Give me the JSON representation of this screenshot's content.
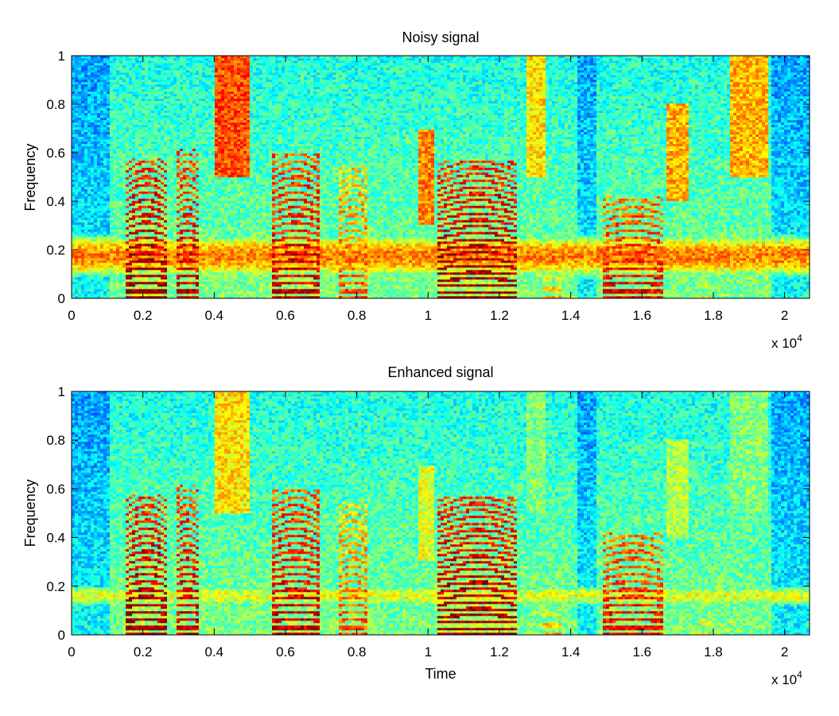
{
  "chart_data": [
    {
      "type": "heatmap",
      "title": "Noisy signal",
      "xlabel": "",
      "ylabel": "Frequency",
      "xlim": [
        0,
        20700
      ],
      "ylim": [
        0,
        1
      ],
      "x_ticks": [
        "0",
        "0.2",
        "0.4",
        "0.6",
        "0.8",
        "1",
        "1.2",
        "1.4",
        "1.6",
        "1.8",
        "2"
      ],
      "y_ticks": [
        "0",
        "0.2",
        "0.4",
        "0.6",
        "0.8",
        "1"
      ],
      "x_exponent_base": "x 10",
      "x_exponent_power": "4",
      "colormap": "jet",
      "noise_band": {
        "freq_range": [
          0.1,
          0.25
        ],
        "level": 0.75
      },
      "speech_segments": [
        {
          "t": [
            1550,
            2650
          ],
          "f0": 0.029,
          "fmax": 0.58,
          "level": 1.0
        },
        {
          "t": [
            2900,
            3600
          ],
          "f0": 0.029,
          "fmax": 0.62,
          "level": 0.95
        },
        {
          "t": [
            5600,
            7000
          ],
          "f0": 0.029,
          "fmax": 0.6,
          "level": 0.95
        },
        {
          "t": [
            7500,
            8300
          ],
          "f0": 0.029,
          "fmax": 0.55,
          "level": 0.8
        },
        {
          "t": [
            10300,
            12500
          ],
          "f0": 0.025,
          "fmax": 0.57,
          "level": 1.0
        },
        {
          "t": [
            13200,
            13700
          ],
          "f0": 0.04,
          "fmax": 0.12,
          "level": 0.7
        },
        {
          "t": [
            14900,
            16600
          ],
          "f0": 0.029,
          "fmax": 0.42,
          "level": 0.9
        },
        {
          "t": [
            17600,
            17900
          ],
          "f0": 0.05,
          "fmax": 0.1,
          "level": 0.65
        }
      ],
      "fricatives": [
        {
          "t": [
            4000,
            5000
          ],
          "freq_range": [
            0.5,
            1.0
          ],
          "level": 0.8
        },
        {
          "t": [
            9700,
            10200
          ],
          "freq_range": [
            0.3,
            0.7
          ],
          "level": 0.75
        },
        {
          "t": [
            12800,
            13300
          ],
          "freq_range": [
            0.5,
            1.0
          ],
          "level": 0.65
        },
        {
          "t": [
            16700,
            17300
          ],
          "freq_range": [
            0.4,
            0.8
          ],
          "level": 0.7
        },
        {
          "t": [
            18500,
            19500
          ],
          "freq_range": [
            0.5,
            1.0
          ],
          "level": 0.7
        }
      ],
      "silence_regions": [
        [
          0,
          1100
        ],
        [
          14200,
          14700
        ],
        [
          19600,
          20700
        ]
      ]
    },
    {
      "type": "heatmap",
      "title": "Enhanced signal",
      "xlabel": "Time",
      "ylabel": "Frequency",
      "xlim": [
        0,
        20700
      ],
      "ylim": [
        0,
        1
      ],
      "x_ticks": [
        "0",
        "0.2",
        "0.4",
        "0.6",
        "0.8",
        "1",
        "1.2",
        "1.4",
        "1.6",
        "1.8",
        "2"
      ],
      "y_ticks": [
        "0",
        "0.2",
        "0.4",
        "0.6",
        "0.8",
        "1"
      ],
      "x_exponent_base": "x 10",
      "x_exponent_power": "4",
      "colormap": "jet",
      "noise_band": {
        "freq_range": [
          0.12,
          0.2
        ],
        "level": 0.6
      },
      "speech_segments": [
        {
          "t": [
            1550,
            2650
          ],
          "f0": 0.029,
          "fmax": 0.58,
          "level": 1.0
        },
        {
          "t": [
            2900,
            3600
          ],
          "f0": 0.029,
          "fmax": 0.62,
          "level": 0.95
        },
        {
          "t": [
            5600,
            7000
          ],
          "f0": 0.029,
          "fmax": 0.6,
          "level": 0.95
        },
        {
          "t": [
            7500,
            8300
          ],
          "f0": 0.029,
          "fmax": 0.55,
          "level": 0.8
        },
        {
          "t": [
            10300,
            12500
          ],
          "f0": 0.025,
          "fmax": 0.57,
          "level": 1.0
        },
        {
          "t": [
            13200,
            13700
          ],
          "f0": 0.04,
          "fmax": 0.12,
          "level": 0.7
        },
        {
          "t": [
            14900,
            16600
          ],
          "f0": 0.029,
          "fmax": 0.42,
          "level": 0.9
        },
        {
          "t": [
            17600,
            17900
          ],
          "f0": 0.05,
          "fmax": 0.1,
          "level": 0.65
        }
      ],
      "fricatives": [
        {
          "t": [
            4000,
            5000
          ],
          "freq_range": [
            0.5,
            1.0
          ],
          "level": 0.65
        },
        {
          "t": [
            9700,
            10200
          ],
          "freq_range": [
            0.3,
            0.7
          ],
          "level": 0.6
        },
        {
          "t": [
            12800,
            13300
          ],
          "freq_range": [
            0.5,
            1.0
          ],
          "level": 0.5
        },
        {
          "t": [
            16700,
            17300
          ],
          "freq_range": [
            0.4,
            0.8
          ],
          "level": 0.55
        },
        {
          "t": [
            18500,
            19500
          ],
          "freq_range": [
            0.5,
            1.0
          ],
          "level": 0.5
        }
      ],
      "silence_regions": [
        [
          0,
          1100
        ],
        [
          14200,
          14700
        ],
        [
          19600,
          20700
        ]
      ]
    }
  ]
}
